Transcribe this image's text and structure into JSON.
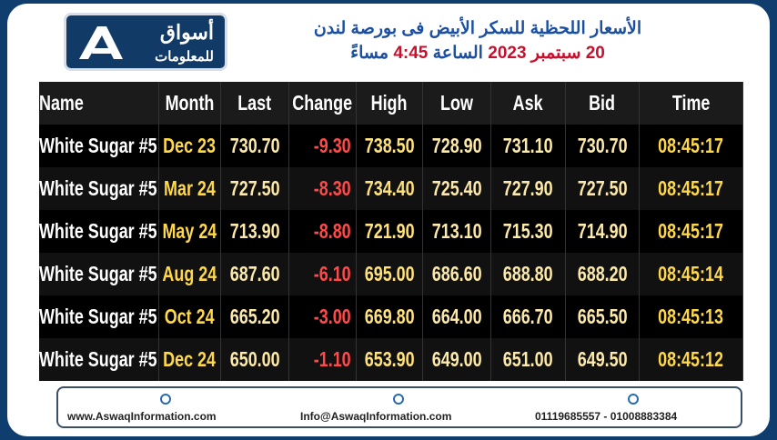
{
  "logo": {
    "name": "أسواق",
    "subtitle": "للمعلومات"
  },
  "header": {
    "title": "الأسعار اللحظية للسكر الأبيض فى بورصة لندن",
    "subtitle_parts": [
      "20 سبتمبر 2023",
      "الساعة",
      "4:45",
      "مساءً"
    ]
  },
  "table": {
    "columns": [
      "Name",
      "Month",
      "Last",
      "Change",
      "High",
      "Low",
      "Ask",
      "Bid",
      "Time"
    ],
    "rows": [
      [
        "White Sugar #5",
        "Dec 23",
        "730.70",
        "-9.30",
        "738.50",
        "728.90",
        "731.10",
        "730.70",
        "08:45:17"
      ],
      [
        "White Sugar #5",
        "Mar 24",
        "727.50",
        "-8.30",
        "734.40",
        "725.40",
        "727.90",
        "727.50",
        "08:45:17"
      ],
      [
        "White Sugar #5",
        "May 24",
        "713.90",
        "-8.80",
        "721.90",
        "713.10",
        "715.30",
        "714.90",
        "08:45:17"
      ],
      [
        "White Sugar #5",
        "Aug 24",
        "687.60",
        "-6.10",
        "695.00",
        "686.60",
        "688.80",
        "688.20",
        "08:45:14"
      ],
      [
        "White Sugar #5",
        "Oct 24",
        "665.20",
        "-3.00",
        "669.80",
        "664.00",
        "666.70",
        "665.50",
        "08:45:13"
      ],
      [
        "White Sugar #5",
        "Dec 24",
        "650.00",
        "-1.10",
        "653.90",
        "649.00",
        "651.00",
        "649.50",
        "08:45:12"
      ]
    ]
  },
  "footer": {
    "website": "www.AswaqInformation.com",
    "email": "Info@AswaqInformation.com",
    "phone": "01119685557 - 01008883384"
  }
}
